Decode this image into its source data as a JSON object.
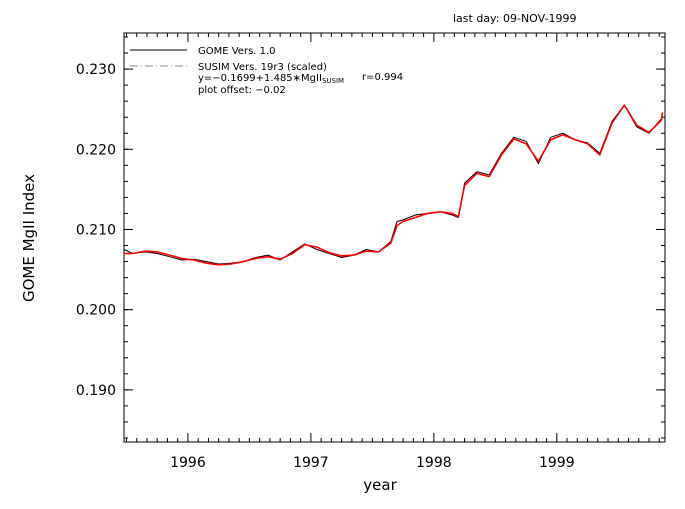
{
  "chart_data": {
    "type": "line",
    "header_note": "last day: 09-NOV-1999",
    "ylabel": "GOME MgII Index",
    "xlabel": "year",
    "xlim": [
      1995.48,
      1999.88
    ],
    "ylim": [
      0.1835,
      0.2345
    ],
    "x_ticks": [
      1996,
      1997,
      1998,
      1999
    ],
    "x_tick_labels": [
      "1996",
      "1997",
      "1998",
      "1999"
    ],
    "y_ticks": [
      0.19,
      0.2,
      0.21,
      0.22,
      0.23
    ],
    "y_tick_labels": [
      "0.190",
      "0.200",
      "0.210",
      "0.220",
      "0.230"
    ],
    "grid": false,
    "legend": {
      "position": "top-left",
      "entries": [
        {
          "label": "GOME Vers. 1.0",
          "style": "solid"
        },
        {
          "label": "SUSIM Vers. 19r3 (scaled)",
          "style": "dash-dot"
        }
      ],
      "formula_prefix": "y=−0.1699+1.485∗MgII",
      "formula_subscript": "SUSIM",
      "correlation": "r=0.994",
      "offset_note": "plot offset: −0.02"
    },
    "colors": {
      "gome": "#000000",
      "susim": "#ff0000"
    },
    "series": [
      {
        "name": "GOME Vers. 1.0",
        "x": [
          1995.48,
          1995.55,
          1995.65,
          1995.75,
          1995.85,
          1995.95,
          1996.05,
          1996.15,
          1996.25,
          1996.35,
          1996.45,
          1996.55,
          1996.65,
          1996.75,
          1996.85,
          1996.95,
          1997.05,
          1997.15,
          1997.25,
          1997.35,
          1997.45,
          1997.55,
          1997.65,
          1997.7,
          1997.75,
          1997.85,
          1997.95,
          1998.05,
          1998.15,
          1998.2,
          1998.25,
          1998.35,
          1998.45,
          1998.55,
          1998.65,
          1998.75,
          1998.85,
          1998.95,
          1999.05,
          1999.15,
          1999.25,
          1999.35,
          1999.45,
          1999.55,
          1999.65,
          1999.75,
          1999.85,
          1999.86
        ],
        "y": [
          0.2075,
          0.207,
          0.2072,
          0.207,
          0.2066,
          0.2062,
          0.2063,
          0.206,
          0.2057,
          0.2058,
          0.206,
          0.2065,
          0.2068,
          0.2062,
          0.2072,
          0.2082,
          0.2075,
          0.207,
          0.2065,
          0.2068,
          0.2075,
          0.2072,
          0.2085,
          0.211,
          0.2112,
          0.2118,
          0.212,
          0.2122,
          0.2118,
          0.2115,
          0.2158,
          0.2172,
          0.2168,
          0.2195,
          0.2215,
          0.221,
          0.2182,
          0.2215,
          0.222,
          0.2212,
          0.2208,
          0.2195,
          0.2235,
          0.2255,
          0.2228,
          0.222,
          0.2238,
          0.2245
        ]
      },
      {
        "name": "SUSIM Vers. 19r3 (scaled)",
        "x": [
          1995.48,
          1995.55,
          1995.65,
          1995.75,
          1995.85,
          1995.95,
          1996.05,
          1996.15,
          1996.25,
          1996.35,
          1996.45,
          1996.55,
          1996.65,
          1996.75,
          1996.85,
          1996.95,
          1997.05,
          1997.15,
          1997.25,
          1997.35,
          1997.45,
          1997.55,
          1997.65,
          1997.7,
          1997.75,
          1997.85,
          1997.95,
          1998.05,
          1998.15,
          1998.2,
          1998.25,
          1998.35,
          1998.45,
          1998.55,
          1998.65,
          1998.75,
          1998.85,
          1998.95,
          1999.05,
          1999.15,
          1999.25,
          1999.35,
          1999.45,
          1999.55,
          1999.65,
          1999.75,
          1999.85,
          1999.86
        ],
        "y": [
          0.207,
          0.207,
          0.2073,
          0.2072,
          0.2068,
          0.2064,
          0.2062,
          0.2058,
          0.2056,
          0.2057,
          0.206,
          0.2064,
          0.2066,
          0.2063,
          0.207,
          0.2081,
          0.2078,
          0.2071,
          0.2067,
          0.2068,
          0.2073,
          0.2072,
          0.2083,
          0.2105,
          0.211,
          0.2115,
          0.212,
          0.2122,
          0.212,
          0.2116,
          0.2155,
          0.217,
          0.2166,
          0.2193,
          0.2213,
          0.2207,
          0.2185,
          0.2212,
          0.2218,
          0.2212,
          0.2207,
          0.2193,
          0.2233,
          0.2255,
          0.223,
          0.2221,
          0.2236,
          0.2246
        ]
      }
    ]
  }
}
